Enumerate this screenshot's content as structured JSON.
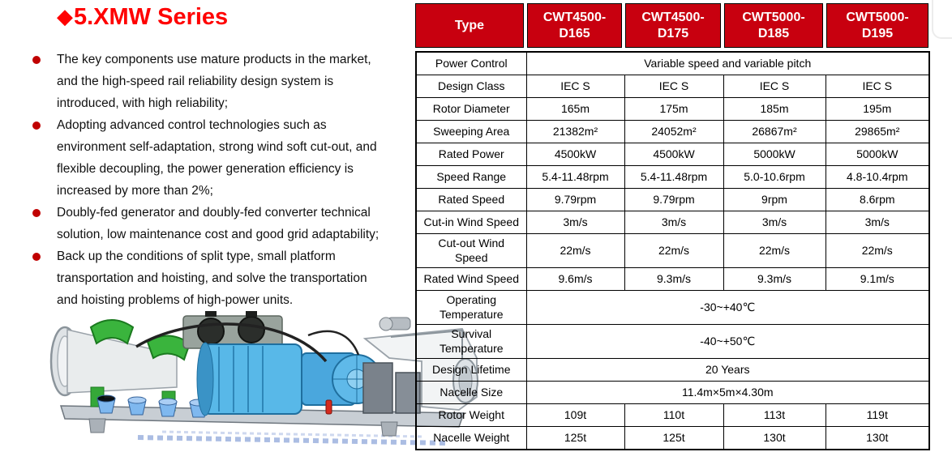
{
  "page": {
    "title_diamond": "◆",
    "title": "5.XMW Series"
  },
  "colors": {
    "title_red": "#FF0000",
    "header_red": "#C8000F",
    "bullet_red": "#C00000"
  },
  "bullets": [
    {
      "text": "The key components use mature products in the market,\nand the high-speed rail reliability design system is\nintroduced, with high reliability;"
    },
    {
      "text": "Adopting advanced control technologies such as\nenvironment self-adaptation, strong wind soft cut-out, and\nflexible decoupling, the power generation efficiency is\nincreased by more than 2%;"
    },
    {
      "text": "Doubly-fed generator and doubly-fed converter technical\nsolution, low maintenance cost and good grid adaptability;"
    },
    {
      "text": "Back up the conditions of split type, small platform\ntransportation and hoisting, and solve the transportation\nand hoisting problems of high-power units."
    }
  ],
  "illustration": {
    "name": "nacelle-drivetrain-image"
  },
  "table": {
    "type_header": "Type",
    "models": [
      "CWT4500-D165",
      "CWT4500-D175",
      "CWT5000-D185",
      "CWT5000-D195"
    ],
    "rows": [
      {
        "label": "Power Control",
        "span": "Variable speed and variable pitch"
      },
      {
        "label": "Design Class",
        "values": [
          "IEC S",
          "IEC S",
          "IEC S",
          "IEC S"
        ]
      },
      {
        "label": "Rotor Diameter",
        "values": [
          "165m",
          "175m",
          "185m",
          "195m"
        ]
      },
      {
        "label": "Sweeping Area",
        "values": [
          "21382m²",
          "24052m²",
          "26867m²",
          "29865m²"
        ]
      },
      {
        "label": "Rated Power",
        "values": [
          "4500kW",
          "4500kW",
          "5000kW",
          "5000kW"
        ]
      },
      {
        "label": "Speed Range",
        "values": [
          "5.4-11.48rpm",
          "5.4-11.48rpm",
          "5.0-10.6rpm",
          "4.8-10.4rpm"
        ]
      },
      {
        "label": "Rated Speed",
        "values": [
          "9.79rpm",
          "9.79rpm",
          "9rpm",
          "8.6rpm"
        ]
      },
      {
        "label": "Cut-in Wind Speed",
        "values": [
          "3m/s",
          "3m/s",
          "3m/s",
          "3m/s"
        ]
      },
      {
        "label": "Cut-out Wind\nSpeed",
        "values": [
          "22m/s",
          "22m/s",
          "22m/s",
          "22m/s"
        ]
      },
      {
        "label": "Rated Wind Speed",
        "values": [
          "9.6m/s",
          "9.3m/s",
          "9.3m/s",
          "9.1m/s"
        ]
      },
      {
        "label": "Operating\nTemperature",
        "span": "-30~+40℃"
      },
      {
        "label": "Survival\nTemperature",
        "span": "-40~+50℃"
      },
      {
        "label": "Design Lifetime",
        "span": "20 Years"
      },
      {
        "label": "Nacelle Size",
        "span": "11.4m×5m×4.30m"
      },
      {
        "label": "Rotor Weight",
        "values": [
          "109t",
          "110t",
          "113t",
          "119t"
        ]
      },
      {
        "label": "Nacelle Weight",
        "values": [
          "125t",
          "125t",
          "130t",
          "130t"
        ]
      }
    ]
  }
}
